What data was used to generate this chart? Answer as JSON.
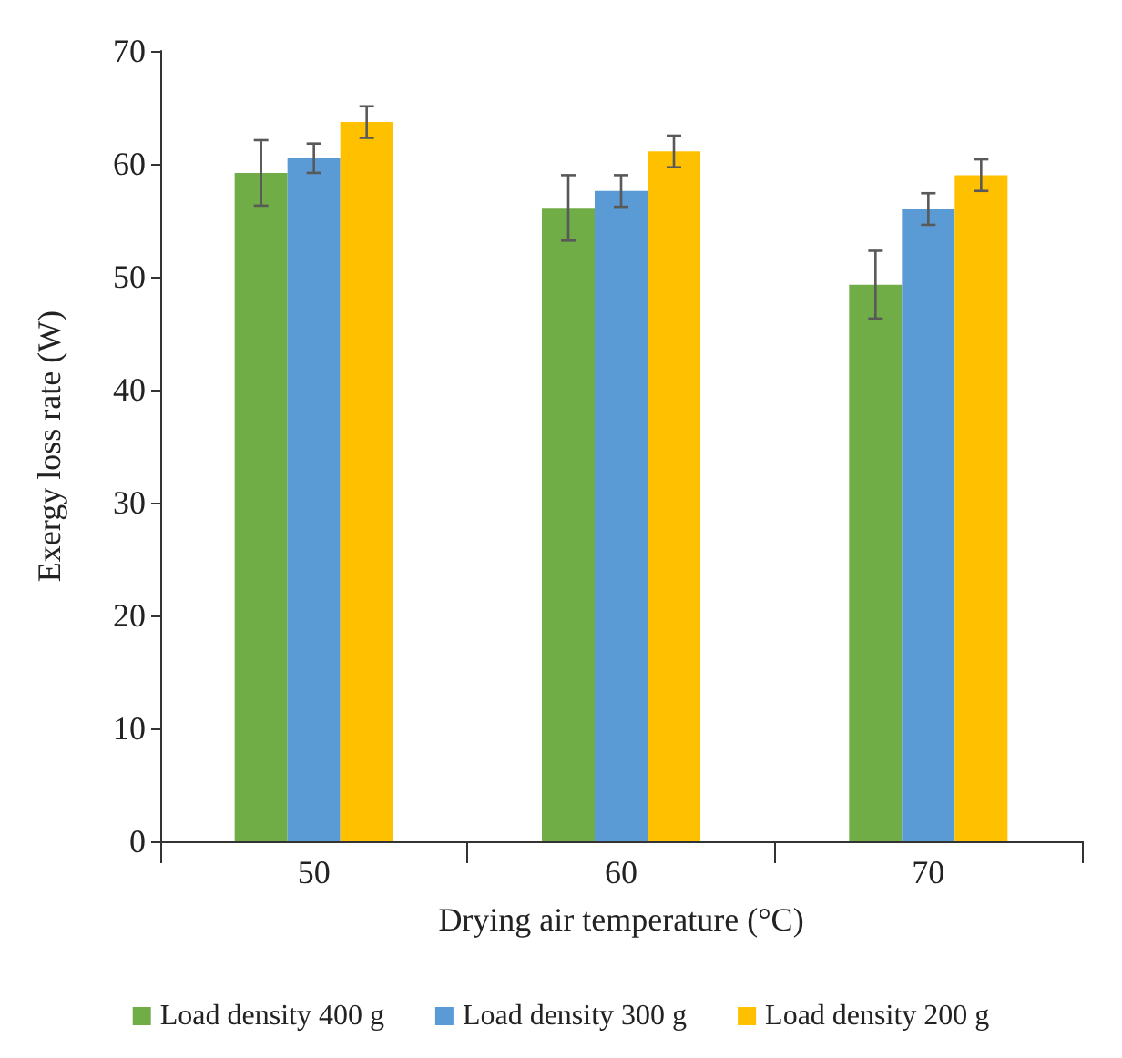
{
  "chart_data": {
    "type": "bar",
    "xlabel": "Drying air temperature (°C)",
    "ylabel": "Exergy loss rate (W)",
    "categories": [
      "50",
      "60",
      "70"
    ],
    "series": [
      {
        "name": "Load density 400 g",
        "color": "#70ad47",
        "values": [
          59.2,
          56.1,
          49.3
        ],
        "errors": [
          2.9,
          2.9,
          3.0
        ]
      },
      {
        "name": "Load density 300 g",
        "color": "#5b9bd5",
        "values": [
          60.5,
          57.6,
          56.0
        ],
        "errors": [
          1.3,
          1.4,
          1.4
        ]
      },
      {
        "name": "Load density 200 g",
        "color": "#ffc000",
        "values": [
          63.7,
          61.1,
          59.0
        ],
        "errors": [
          1.4,
          1.4,
          1.4
        ]
      }
    ],
    "ylim": [
      0,
      70
    ],
    "yticks": [
      0,
      10,
      20,
      30,
      40,
      50,
      60,
      70
    ],
    "grid": false,
    "legend": "bottom"
  }
}
